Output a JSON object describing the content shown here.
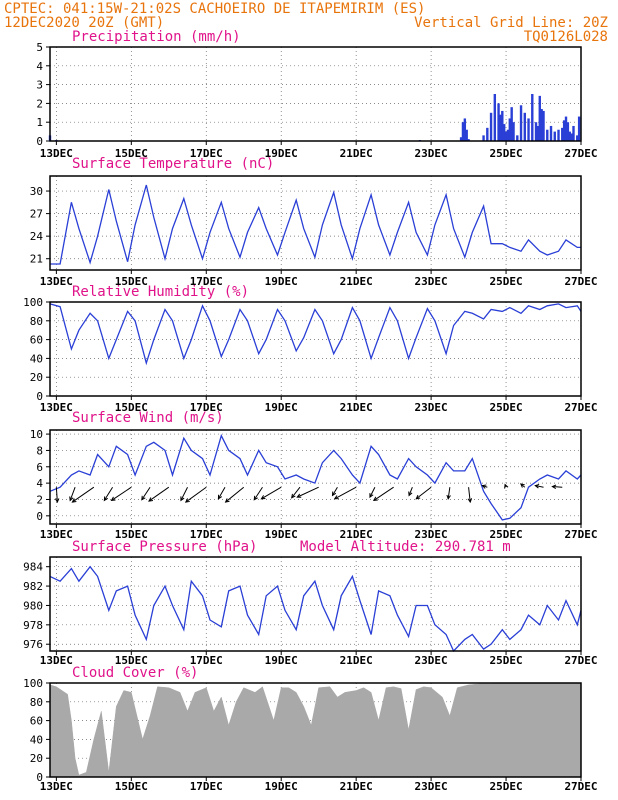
{
  "header": {
    "left_line1": "CPTEC:  041:15W-21:02S  CACHOEIRO DE ITAPEMIRIM (ES)",
    "left_line2": "12DEC2020 20Z (GMT)",
    "right_line2": "Vertical Grid Line: 20Z",
    "right_line3": "TQ0126L028"
  },
  "colors": {
    "header": "#e8740c",
    "panel_title": "#e0138a",
    "series": "#2a3fd6",
    "cloud_fill": "#a9a9a9",
    "arrow": "#000000"
  },
  "x_ticks": [
    "13DEC",
    "15DEC",
    "17DEC",
    "19DEC",
    "21DEC",
    "23DEC",
    "25DEC",
    "27DEC"
  ],
  "chart_data": [
    {
      "type": "bar",
      "title": "Precipitation (mm/h)",
      "x_ticks": [
        "13DEC",
        "15DEC",
        "17DEC",
        "19DEC",
        "21DEC",
        "23DEC",
        "25DEC",
        "27DEC"
      ],
      "ylim": [
        0,
        5
      ],
      "yticks": [
        0,
        1,
        2,
        3,
        4,
        5
      ],
      "grid": true,
      "series": [
        {
          "x_day": [
            12.83,
            13.0,
            22.7,
            23.8,
            23.85,
            23.9,
            23.95,
            24.0,
            24.4,
            24.5,
            24.6,
            24.7,
            24.8,
            24.85,
            24.9,
            24.95,
            25.0,
            25.05,
            25.1,
            25.15,
            25.2,
            25.3,
            25.4,
            25.5,
            25.6,
            25.7,
            25.8,
            25.85,
            25.9,
            25.95,
            26.0,
            26.1,
            26.2,
            26.3,
            26.4,
            26.5,
            26.55,
            26.6,
            26.65,
            26.7,
            26.75,
            26.8,
            26.9,
            26.95
          ],
          "values": [
            0.3,
            0.05,
            0.05,
            0.2,
            1.0,
            1.2,
            0.6,
            0.1,
            0.3,
            0.7,
            1.5,
            2.5,
            2.0,
            1.4,
            1.6,
            0.9,
            0.5,
            0.6,
            1.2,
            1.8,
            1.0,
            0.3,
            1.9,
            1.5,
            1.2,
            2.5,
            1.0,
            0.8,
            2.4,
            1.7,
            1.6,
            0.6,
            0.8,
            0.5,
            0.6,
            0.7,
            1.1,
            1.3,
            1.0,
            0.5,
            0.4,
            0.8,
            0.3,
            1.3
          ]
        }
      ]
    },
    {
      "type": "line",
      "title": "Surface Temperature (nC)",
      "x_ticks": [
        "13DEC",
        "15DEC",
        "17DEC",
        "19DEC",
        "21DEC",
        "23DEC",
        "25DEC",
        "27DEC"
      ],
      "ylim": [
        19.5,
        32
      ],
      "yticks": [
        21,
        24,
        27,
        30
      ],
      "grid": true,
      "series": [
        {
          "x_day": [
            12.83,
            13.1,
            13.4,
            13.6,
            13.9,
            14.1,
            14.4,
            14.6,
            14.9,
            15.1,
            15.4,
            15.6,
            15.9,
            16.1,
            16.4,
            16.6,
            16.9,
            17.1,
            17.4,
            17.6,
            17.9,
            18.1,
            18.4,
            18.6,
            18.9,
            19.1,
            19.4,
            19.6,
            19.9,
            20.1,
            20.4,
            20.6,
            20.9,
            21.1,
            21.4,
            21.6,
            21.9,
            22.1,
            22.4,
            22.6,
            22.9,
            23.1,
            23.4,
            23.6,
            23.9,
            24.1,
            24.4,
            24.6,
            24.9,
            25.1,
            25.4,
            25.6,
            25.9,
            26.1,
            26.4,
            26.6,
            26.9,
            27.0
          ],
          "values": [
            20.3,
            20.3,
            28.5,
            25.0,
            20.5,
            24.0,
            30.2,
            26.0,
            20.6,
            25.5,
            30.8,
            26.5,
            21.0,
            25.0,
            29.0,
            25.5,
            21.0,
            24.5,
            28.5,
            25.0,
            21.2,
            24.5,
            27.8,
            25.0,
            21.5,
            24.5,
            28.8,
            25.0,
            21.2,
            25.5,
            29.8,
            25.5,
            21.0,
            25.0,
            29.5,
            25.5,
            21.5,
            24.5,
            28.5,
            24.5,
            21.5,
            25.5,
            29.5,
            25.0,
            21.2,
            24.5,
            28.0,
            23.0,
            23.0,
            22.5,
            22.0,
            23.5,
            22.0,
            21.5,
            22.0,
            23.5,
            22.5,
            22.5
          ]
        }
      ]
    },
    {
      "type": "line",
      "title": "Relative Humidity (%)",
      "x_ticks": [
        "13DEC",
        "15DEC",
        "17DEC",
        "19DEC",
        "21DEC",
        "23DEC",
        "25DEC",
        "27DEC"
      ],
      "ylim": [
        0,
        100
      ],
      "yticks": [
        0,
        20,
        40,
        60,
        80,
        100
      ],
      "grid": true,
      "series": [
        {
          "x_day": [
            12.83,
            13.1,
            13.4,
            13.6,
            13.9,
            14.1,
            14.4,
            14.6,
            14.9,
            15.1,
            15.4,
            15.6,
            15.9,
            16.1,
            16.4,
            16.6,
            16.9,
            17.1,
            17.4,
            17.6,
            17.9,
            18.1,
            18.4,
            18.6,
            18.9,
            19.1,
            19.4,
            19.6,
            19.9,
            20.1,
            20.4,
            20.6,
            20.9,
            21.1,
            21.4,
            21.6,
            21.9,
            22.1,
            22.4,
            22.6,
            22.9,
            23.1,
            23.4,
            23.6,
            23.9,
            24.1,
            24.4,
            24.6,
            24.9,
            25.1,
            25.4,
            25.6,
            25.9,
            26.1,
            26.4,
            26.6,
            26.9,
            27.0
          ],
          "values": [
            98,
            95,
            50,
            70,
            88,
            80,
            40,
            60,
            90,
            80,
            35,
            60,
            92,
            80,
            40,
            60,
            96,
            80,
            42,
            60,
            92,
            80,
            45,
            60,
            92,
            80,
            48,
            62,
            92,
            80,
            45,
            60,
            94,
            80,
            40,
            62,
            94,
            80,
            40,
            62,
            93,
            80,
            45,
            75,
            90,
            88,
            82,
            92,
            90,
            94,
            88,
            96,
            92,
            96,
            98,
            94,
            96,
            90
          ]
        }
      ]
    },
    {
      "type": "line",
      "title": "Surface Wind (m/s)",
      "x_ticks": [
        "13DEC",
        "15DEC",
        "17DEC",
        "19DEC",
        "21DEC",
        "23DEC",
        "25DEC",
        "27DEC"
      ],
      "ylim": [
        -1,
        10.5
      ],
      "yticks": [
        0,
        2,
        4,
        6,
        8,
        10
      ],
      "grid": true,
      "series": [
        {
          "x_day": [
            12.83,
            13.1,
            13.4,
            13.6,
            13.9,
            14.1,
            14.4,
            14.6,
            14.9,
            15.1,
            15.4,
            15.6,
            15.9,
            16.1,
            16.4,
            16.6,
            16.9,
            17.1,
            17.4,
            17.6,
            17.9,
            18.1,
            18.4,
            18.6,
            18.9,
            19.1,
            19.4,
            19.6,
            19.9,
            20.1,
            20.4,
            20.6,
            20.9,
            21.1,
            21.4,
            21.6,
            21.9,
            22.1,
            22.4,
            22.6,
            22.9,
            23.1,
            23.4,
            23.6,
            23.9,
            24.1,
            24.4,
            24.6,
            24.9,
            25.1,
            25.4,
            25.6,
            25.9,
            26.1,
            26.4,
            26.6,
            26.9,
            27.0
          ],
          "values": [
            3.0,
            3.5,
            5.0,
            5.5,
            5.0,
            7.5,
            6.0,
            8.5,
            7.5,
            5.0,
            8.5,
            9.0,
            8.0,
            5.0,
            9.5,
            8.0,
            7.0,
            5.0,
            9.8,
            8.0,
            7.0,
            5.0,
            8.0,
            6.5,
            6.0,
            4.5,
            5.0,
            4.5,
            4.0,
            6.5,
            8.0,
            7.0,
            5.0,
            4.0,
            8.5,
            7.5,
            5.0,
            4.5,
            7.0,
            6.0,
            5.0,
            4.0,
            6.5,
            5.5,
            5.5,
            7.0,
            3.0,
            1.5,
            -0.5,
            -0.3,
            1.0,
            3.5,
            4.5,
            5.0,
            4.5,
            5.5,
            4.5,
            5.0
          ]
        }
      ],
      "vectors": [
        {
          "x_day": 13.0,
          "u": 0.3,
          "v": -4.5
        },
        {
          "x_day": 13.5,
          "u": -1.5,
          "v": -4.0
        },
        {
          "x_day": 14.0,
          "u": -6.5,
          "v": -4.5
        },
        {
          "x_day": 14.5,
          "u": -2.5,
          "v": -4.0
        },
        {
          "x_day": 15.0,
          "u": -6.0,
          "v": -4.0
        },
        {
          "x_day": 15.5,
          "u": -2.5,
          "v": -3.8
        },
        {
          "x_day": 16.0,
          "u": -6.0,
          "v": -4.2
        },
        {
          "x_day": 16.5,
          "u": -2.0,
          "v": -4.0
        },
        {
          "x_day": 17.0,
          "u": -6.2,
          "v": -4.5
        },
        {
          "x_day": 17.5,
          "u": -2.0,
          "v": -3.5
        },
        {
          "x_day": 18.0,
          "u": -5.5,
          "v": -4.5
        },
        {
          "x_day": 18.5,
          "u": -2.5,
          "v": -3.8
        },
        {
          "x_day": 19.0,
          "u": -6.0,
          "v": -3.5
        },
        {
          "x_day": 19.5,
          "u": -2.5,
          "v": -3.2
        },
        {
          "x_day": 20.0,
          "u": -6.5,
          "v": -3.0
        },
        {
          "x_day": 20.5,
          "u": -1.5,
          "v": -2.5
        },
        {
          "x_day": 21.0,
          "u": -6.5,
          "v": -3.5
        },
        {
          "x_day": 21.5,
          "u": -1.5,
          "v": -3.0
        },
        {
          "x_day": 22.0,
          "u": -6.0,
          "v": -4.0
        },
        {
          "x_day": 22.5,
          "u": -1.0,
          "v": -2.5
        },
        {
          "x_day": 23.0,
          "u": -4.5,
          "v": -3.5
        },
        {
          "x_day": 23.5,
          "u": -0.5,
          "v": -3.5
        },
        {
          "x_day": 24.0,
          "u": 0.5,
          "v": -4.5
        },
        {
          "x_day": 24.5,
          "u": -1.5,
          "v": 0.5
        },
        {
          "x_day": 25.0,
          "u": -0.3,
          "v": 0.8
        },
        {
          "x_day": 25.5,
          "u": -1.2,
          "v": 1.0
        },
        {
          "x_day": 26.0,
          "u": -2.5,
          "v": 0.5
        },
        {
          "x_day": 26.5,
          "u": -3.0,
          "v": 0.2
        }
      ]
    },
    {
      "type": "line",
      "title": "Surface Pressure (hPa)",
      "annotation": "Model Altitude: 290.781 m",
      "x_ticks": [
        "13DEC",
        "15DEC",
        "17DEC",
        "19DEC",
        "21DEC",
        "23DEC",
        "25DEC",
        "27DEC"
      ],
      "ylim": [
        975.3,
        985
      ],
      "yticks": [
        976,
        978,
        980,
        982,
        984
      ],
      "grid": true,
      "series": [
        {
          "x_day": [
            12.83,
            13.1,
            13.4,
            13.6,
            13.9,
            14.1,
            14.4,
            14.6,
            14.9,
            15.1,
            15.4,
            15.6,
            15.9,
            16.1,
            16.4,
            16.6,
            16.9,
            17.1,
            17.4,
            17.6,
            17.9,
            18.1,
            18.4,
            18.6,
            18.9,
            19.1,
            19.4,
            19.6,
            19.9,
            20.1,
            20.4,
            20.6,
            20.9,
            21.1,
            21.4,
            21.6,
            21.9,
            22.1,
            22.4,
            22.6,
            22.9,
            23.1,
            23.4,
            23.6,
            23.9,
            24.1,
            24.4,
            24.6,
            24.9,
            25.1,
            25.4,
            25.6,
            25.9,
            26.1,
            26.4,
            26.6,
            26.9,
            27.0
          ],
          "values": [
            983.0,
            982.5,
            983.8,
            982.5,
            984.0,
            983.0,
            979.5,
            981.5,
            982.0,
            979.0,
            976.5,
            980.0,
            982.0,
            980.0,
            977.5,
            982.5,
            981.0,
            978.5,
            977.8,
            981.5,
            982.0,
            979.0,
            977.0,
            981.0,
            982.0,
            979.5,
            977.5,
            981.0,
            982.5,
            980.0,
            977.5,
            981.0,
            983.0,
            980.5,
            977.0,
            981.5,
            981.0,
            979.0,
            976.8,
            980.0,
            980.0,
            978.0,
            977.0,
            975.3,
            976.5,
            977.0,
            975.5,
            976.0,
            977.5,
            976.5,
            977.5,
            979.0,
            978.0,
            980.0,
            978.5,
            980.5,
            978.0,
            979.5
          ]
        }
      ]
    },
    {
      "type": "area",
      "title": "Cloud Cover (%)",
      "x_ticks": [
        "13DEC",
        "15DEC",
        "17DEC",
        "19DEC",
        "21DEC",
        "23DEC",
        "25DEC",
        "27DEC"
      ],
      "ylim": [
        0,
        100
      ],
      "yticks": [
        0,
        20,
        40,
        60,
        80,
        100
      ],
      "grid": true,
      "series": [
        {
          "x_day": [
            12.83,
            13.0,
            13.3,
            13.4,
            13.5,
            13.6,
            13.8,
            14.0,
            14.2,
            14.4,
            14.6,
            14.8,
            15.0,
            15.3,
            15.5,
            15.7,
            16.0,
            16.3,
            16.5,
            16.7,
            17.0,
            17.2,
            17.4,
            17.6,
            17.8,
            18.0,
            18.3,
            18.5,
            18.8,
            19.0,
            19.2,
            19.4,
            19.6,
            19.8,
            20.0,
            20.3,
            20.5,
            20.7,
            21.0,
            21.2,
            21.4,
            21.6,
            21.8,
            22.0,
            22.2,
            22.4,
            22.6,
            22.8,
            23.0,
            23.3,
            23.5,
            23.7,
            24.0,
            24.3,
            24.6,
            25.0,
            25.5,
            26.0,
            26.5,
            27.0
          ],
          "values": [
            98,
            96,
            88,
            60,
            20,
            2,
            5,
            40,
            70,
            5,
            75,
            92,
            90,
            40,
            65,
            96,
            95,
            90,
            70,
            90,
            95,
            70,
            85,
            55,
            80,
            95,
            90,
            96,
            60,
            95,
            95,
            90,
            75,
            55,
            95,
            96,
            85,
            90,
            92,
            95,
            90,
            60,
            95,
            96,
            94,
            50,
            93,
            96,
            95,
            85,
            65,
            95,
            98,
            99,
            99,
            100,
            100,
            100,
            100,
            100
          ]
        }
      ]
    }
  ]
}
